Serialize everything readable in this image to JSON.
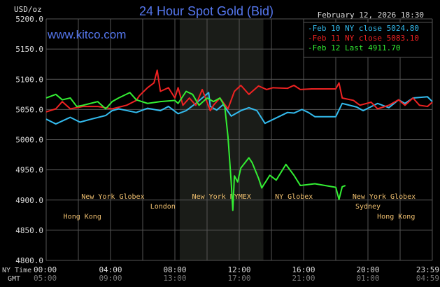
{
  "chart_data": {
    "type": "line",
    "title": "24 Hour Spot Gold (Bid)",
    "watermark": "www.kitco.com",
    "date_label": "February 12, 2026 18:30",
    "ylabel": "USD/oz",
    "ylim": [
      4800,
      5200
    ],
    "yticks": [
      "5200.0",
      "5150.0",
      "5100.0",
      "5050.0",
      "5000.0",
      "4950.0",
      "4900.0",
      "4850.0",
      "4800.0"
    ],
    "ytick_values": [
      5200,
      5150,
      5100,
      5050,
      5000,
      4950,
      4900,
      4850,
      4800
    ],
    "xlim_hours": [
      0,
      24
    ],
    "x_row_labels": {
      "ny": "NY Time",
      "gmt": "GMT"
    },
    "xticks_ny": [
      "00:00",
      "04:00",
      "08:00",
      "12:00",
      "16:00",
      "20:00",
      "23:59"
    ],
    "xticks_gmt": [
      "05:00",
      "09:00",
      "13:00",
      "17:00",
      "21:00",
      "01:00",
      "04:59"
    ],
    "xtick_hours": [
      0,
      4,
      8,
      12,
      16,
      20,
      24
    ],
    "nymex_shade_hours": [
      8.3,
      13.5
    ],
    "legend": [
      {
        "label": "Feb 10 NY close 5024.80",
        "color": "#33bbee"
      },
      {
        "label": "Feb 11 NY close 5083.10",
        "color": "#ee2222"
      },
      {
        "label": "Feb 12 Last 4911.70",
        "color": "#33ee33"
      }
    ],
    "series": [
      {
        "name": "Feb 10",
        "color": "#33bbee",
        "points": [
          [
            0,
            5034
          ],
          [
            0.6,
            5026
          ],
          [
            1.5,
            5037
          ],
          [
            2.1,
            5029
          ],
          [
            2.8,
            5034
          ],
          [
            3.7,
            5040
          ],
          [
            4.1,
            5048
          ],
          [
            4.5,
            5051
          ],
          [
            5.6,
            5045
          ],
          [
            6.3,
            5052
          ],
          [
            7.1,
            5048
          ],
          [
            7.6,
            5055
          ],
          [
            8.2,
            5043
          ],
          [
            8.7,
            5048
          ],
          [
            9.3,
            5060
          ],
          [
            9.7,
            5069
          ],
          [
            10.1,
            5078
          ],
          [
            10.2,
            5055
          ],
          [
            10.6,
            5049
          ],
          [
            11.0,
            5058
          ],
          [
            11.5,
            5039
          ],
          [
            12.1,
            5048
          ],
          [
            12.6,
            5053
          ],
          [
            13.1,
            5048
          ],
          [
            13.6,
            5027
          ],
          [
            14.3,
            5036
          ],
          [
            15.0,
            5045
          ],
          [
            15.4,
            5044
          ],
          [
            15.9,
            5050
          ],
          [
            16.3,
            5045
          ],
          [
            16.7,
            5038
          ],
          [
            18.0,
            5038
          ],
          [
            18.4,
            5060
          ],
          [
            19.3,
            5054
          ],
          [
            19.7,
            5048
          ],
          [
            20.6,
            5060
          ],
          [
            21.3,
            5053
          ],
          [
            21.9,
            5066
          ],
          [
            22.3,
            5060
          ],
          [
            22.8,
            5069
          ],
          [
            23.7,
            5071
          ],
          [
            24,
            5063
          ]
        ]
      },
      {
        "name": "Feb 11",
        "color": "#ee2222",
        "points": [
          [
            0,
            5046
          ],
          [
            0.6,
            5051
          ],
          [
            1.0,
            5063
          ],
          [
            1.5,
            5051
          ],
          [
            2.3,
            5055
          ],
          [
            3.2,
            5055
          ],
          [
            4.1,
            5051
          ],
          [
            5.0,
            5057
          ],
          [
            5.6,
            5065
          ],
          [
            5.8,
            5073
          ],
          [
            6.3,
            5086
          ],
          [
            6.7,
            5094
          ],
          [
            6.9,
            5115
          ],
          [
            7.1,
            5080
          ],
          [
            7.6,
            5086
          ],
          [
            8.0,
            5069
          ],
          [
            8.2,
            5086
          ],
          [
            8.5,
            5057
          ],
          [
            8.9,
            5069
          ],
          [
            9.3,
            5057
          ],
          [
            9.7,
            5083
          ],
          [
            10.2,
            5048
          ],
          [
            10.4,
            5057
          ],
          [
            10.8,
            5069
          ],
          [
            11.3,
            5051
          ],
          [
            11.7,
            5080
          ],
          [
            12.1,
            5090
          ],
          [
            12.6,
            5075
          ],
          [
            13.2,
            5089
          ],
          [
            13.7,
            5083
          ],
          [
            14.1,
            5086
          ],
          [
            15.0,
            5085
          ],
          [
            15.4,
            5090
          ],
          [
            15.8,
            5083
          ],
          [
            16.5,
            5084
          ],
          [
            18.0,
            5084
          ],
          [
            18.2,
            5094
          ],
          [
            18.4,
            5069
          ],
          [
            19.1,
            5065
          ],
          [
            19.5,
            5057
          ],
          [
            20.2,
            5062
          ],
          [
            20.6,
            5051
          ],
          [
            21.3,
            5057
          ],
          [
            21.9,
            5066
          ],
          [
            22.3,
            5057
          ],
          [
            22.8,
            5069
          ],
          [
            23.2,
            5057
          ],
          [
            23.7,
            5055
          ],
          [
            24,
            5062
          ]
        ]
      },
      {
        "name": "Feb 12",
        "color": "#33ee33",
        "points": [
          [
            0,
            5069
          ],
          [
            0.6,
            5075
          ],
          [
            1.0,
            5066
          ],
          [
            1.5,
            5069
          ],
          [
            1.9,
            5055
          ],
          [
            2.3,
            5057
          ],
          [
            3.2,
            5063
          ],
          [
            3.7,
            5051
          ],
          [
            4.1,
            5063
          ],
          [
            4.5,
            5069
          ],
          [
            5.2,
            5078
          ],
          [
            5.6,
            5066
          ],
          [
            6.3,
            5060
          ],
          [
            7.1,
            5063
          ],
          [
            8.0,
            5065
          ],
          [
            8.2,
            5060
          ],
          [
            8.7,
            5080
          ],
          [
            9.1,
            5075
          ],
          [
            9.5,
            5057
          ],
          [
            10.0,
            5069
          ],
          [
            10.4,
            5063
          ],
          [
            10.8,
            5069
          ],
          [
            11.1,
            5055
          ],
          [
            11.3,
            5005
          ],
          [
            11.5,
            4930
          ],
          [
            11.6,
            4883
          ],
          [
            11.7,
            4940
          ],
          [
            11.9,
            4930
          ],
          [
            12.1,
            4953
          ],
          [
            12.6,
            4970
          ],
          [
            12.8,
            4962
          ],
          [
            13.2,
            4936
          ],
          [
            13.4,
            4920
          ],
          [
            13.9,
            4941
          ],
          [
            14.3,
            4933
          ],
          [
            14.9,
            4959
          ],
          [
            15.4,
            4941
          ],
          [
            15.8,
            4924
          ],
          [
            16.7,
            4927
          ],
          [
            18.0,
            4921
          ],
          [
            18.2,
            4901
          ],
          [
            18.4,
            4922
          ],
          [
            18.6,
            4924
          ]
        ]
      }
    ],
    "sessions": [
      {
        "label": "Hong Kong",
        "row": 0,
        "start": 0,
        "end": 4.5
      },
      {
        "label": "Hong Kong",
        "row": 0,
        "start": 19.5,
        "end": 24
      },
      {
        "label": "London",
        "row": 1,
        "start": 3.5,
        "end": 11
      },
      {
        "label": "Sydney",
        "row": 1,
        "start": 17,
        "end": 23
      },
      {
        "label": "New York Globex",
        "row": 2,
        "start": 0,
        "end": 8.3
      },
      {
        "label": "New York NYMEX",
        "row": 2,
        "start": 8.3,
        "end": 13.5
      },
      {
        "label": "NY Globex",
        "row": 2,
        "start": 13.5,
        "end": 17.3
      },
      {
        "label": "New York Globex",
        "row": 2,
        "start": 18,
        "end": 24
      }
    ]
  }
}
